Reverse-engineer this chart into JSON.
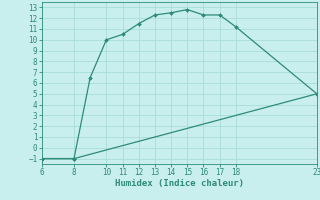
{
  "xlabel": "Humidex (Indice chaleur)",
  "line1_x": [
    6,
    8,
    9,
    10,
    11,
    12,
    13,
    14,
    15,
    16,
    17,
    18,
    23
  ],
  "line1_y": [
    -1,
    -1,
    6.5,
    10.0,
    10.5,
    11.5,
    12.3,
    12.5,
    12.8,
    12.3,
    12.3,
    11.2,
    5.0
  ],
  "line2_x": [
    6,
    8,
    23
  ],
  "line2_y": [
    -1,
    -1,
    5.0
  ],
  "line_color": "#2e8b77",
  "bg_color": "#c8eeee",
  "grid_color": "#aadddd",
  "xlim": [
    6,
    23
  ],
  "ylim": [
    -1.5,
    13.5
  ],
  "xticks": [
    6,
    8,
    10,
    11,
    12,
    13,
    14,
    15,
    16,
    17,
    18,
    23
  ],
  "yticks": [
    -1,
    0,
    1,
    2,
    3,
    4,
    5,
    6,
    7,
    8,
    9,
    10,
    11,
    12,
    13
  ],
  "marker_size": 2.0,
  "line_width": 0.9,
  "tick_fontsize": 5.5
}
